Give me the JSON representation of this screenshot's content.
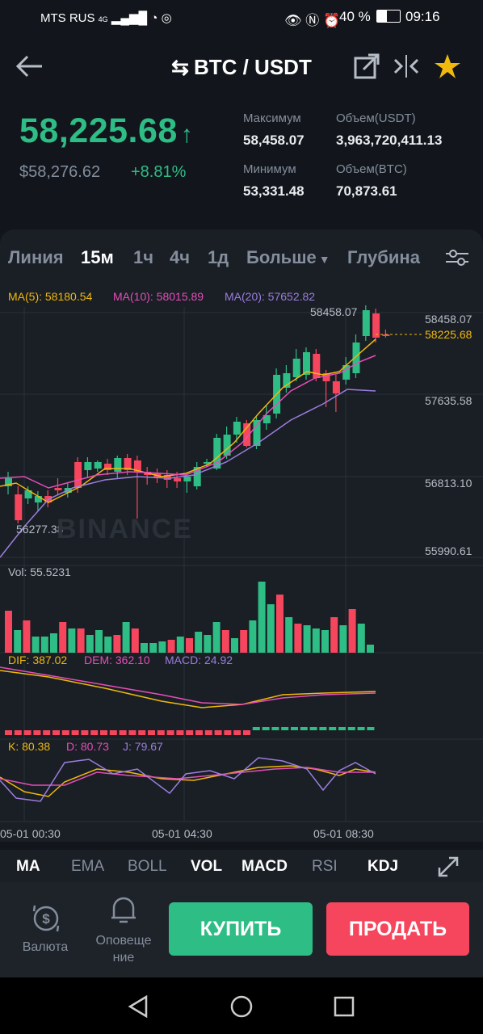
{
  "status": {
    "carrier": "MTS RUS",
    "signal": "4G",
    "battery": "40 %",
    "time": "09:16"
  },
  "header": {
    "pair": "BTC / USDT"
  },
  "ticker": {
    "price": "58,225.68",
    "usd_price": "$58,276.62",
    "change": "+8.81%",
    "high_label": "Максимум",
    "high": "58,458.07",
    "low_label": "Минимум",
    "low": "53,331.48",
    "vol_usdt_label": "Объем(USDT)",
    "vol_usdt": "3,963,720,411.13",
    "vol_btc_label": "Объем(BTC)",
    "vol_btc": "70,873.61"
  },
  "tabs": [
    "Линия",
    "15м",
    "1ч",
    "4ч",
    "1д",
    "Больше",
    "Глубина"
  ],
  "active_tab": "15м",
  "chart": {
    "ma5": "MA(5): 58180.54",
    "ma10": "MA(10): 58015.89",
    "ma20": "MA(20): 57652.82",
    "high_marker": "58458.07",
    "low_marker": "56277.38",
    "watermark": "BINANCE",
    "axis": [
      "58458.07",
      "57635.58",
      "56813.10",
      "55990.61"
    ],
    "current": "58225.68",
    "vol": "Vol: 55.5231",
    "dif": "DIF: 387.02",
    "dem": "DEM: 362.10",
    "macd": "MACD: 24.92",
    "k": "K: 80.38",
    "d": "D: 80.73",
    "j": "J: 79.67",
    "times": [
      "05-01 00:30",
      "05-01 04:30",
      "05-01 08:30"
    ]
  },
  "colors": {
    "up": "#2ebd85",
    "down": "#f6465d",
    "ma5": "#f0b90b",
    "ma10": "#e44fb8",
    "ma20": "#9b7ede"
  },
  "indicators": [
    "MA",
    "EMA",
    "BOLL",
    "VOL",
    "MACD",
    "RSI",
    "KDJ"
  ],
  "bottom": {
    "currency": "Валюта",
    "alert_line1": "Оповеще",
    "alert_line2": "ние",
    "buy": "КУПИТЬ",
    "sell": "ПРОДАТЬ"
  }
}
